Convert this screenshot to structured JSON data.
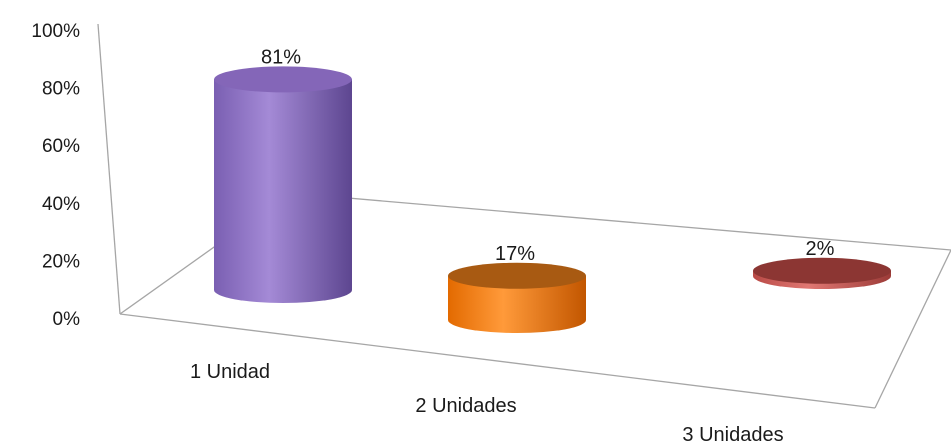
{
  "chart_data": {
    "type": "bar",
    "style": "3d-cylinder",
    "categories": [
      "1 Unidad",
      "2 Unidades",
      "3 Unidades"
    ],
    "values": [
      81,
      17,
      2
    ],
    "data_labels": [
      "81%",
      "17%",
      "2%"
    ],
    "y_ticks": [
      "0%",
      "20%",
      "40%",
      "60%",
      "80%",
      "100%"
    ],
    "ylim": [
      0,
      100
    ],
    "grid": false,
    "legend": "none",
    "colors": [
      "#8a6fc0",
      "#ee7a12",
      "#c0504d"
    ]
  }
}
